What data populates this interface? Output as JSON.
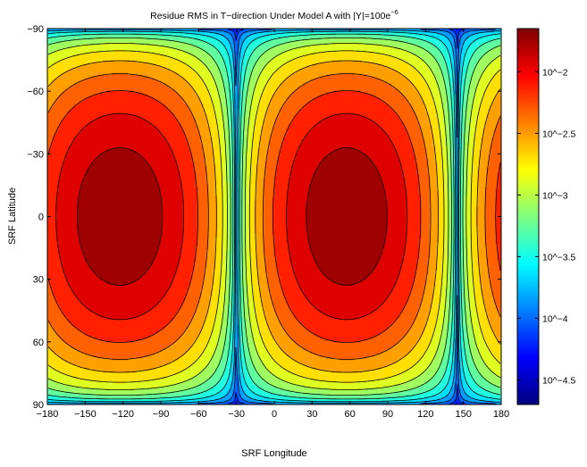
{
  "chart_data": {
    "type": "heatmap",
    "title": "Residue RMS in T−direction Under Model A with |Y|=100e",
    "title_superscript": "−6",
    "xlabel": "SRF Longitude",
    "ylabel": "SRF Latitude",
    "xlim": [
      -180,
      180
    ],
    "ylim": [
      -90,
      90
    ],
    "y_axis_reversed": true,
    "x_ticks": [
      -180,
      -150,
      -120,
      -90,
      -60,
      -30,
      0,
      30,
      60,
      90,
      120,
      150,
      180
    ],
    "x_tick_labels": [
      "−180",
      "−150",
      "−120",
      "−90",
      "−60",
      "−30",
      "0",
      "30",
      "60",
      "90",
      "120",
      "150",
      "180"
    ],
    "y_ticks": [
      -90,
      -60,
      -30,
      0,
      30,
      60,
      90
    ],
    "y_tick_labels": [
      "−90",
      "−60",
      "−30",
      "0",
      "30",
      "60",
      "90"
    ],
    "colorbar": {
      "log_scale": true,
      "range_log10": [
        -4.7,
        -1.65
      ],
      "ticks_log10": [
        -2,
        -2.5,
        -3,
        -3.5,
        -4,
        -4.5
      ],
      "tick_labels": [
        "10^−2",
        "10^−2.5",
        "10^−3",
        "10^−3.5",
        "10^−4",
        "10^−4.5"
      ],
      "colormap": "jet"
    },
    "contour_levels": 16,
    "minima_longitudes": [
      -30,
      145
    ],
    "maxima": [
      {
        "longitude": -120,
        "latitude": 0,
        "value_log10": -1.7
      },
      {
        "longitude": 55,
        "latitude": 0,
        "value_log10": -1.7
      }
    ],
    "grid": false
  }
}
